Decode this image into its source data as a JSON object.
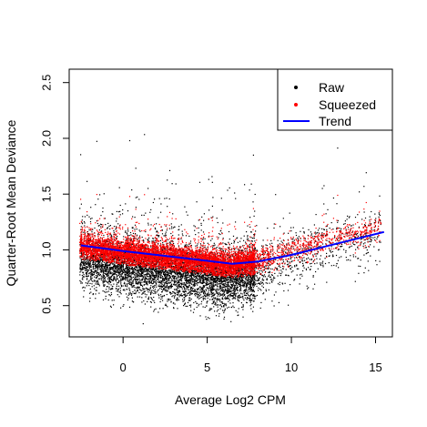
{
  "chart_data": {
    "type": "scatter",
    "xlabel": "Average Log2 CPM",
    "ylabel": "Quarter-Root Mean Deviance",
    "xlim": [
      -3.2,
      16.0
    ],
    "ylim": [
      0.22,
      2.62
    ],
    "x_ticks": [
      0,
      5,
      10,
      15
    ],
    "x_tick_labels": [
      "0",
      "5",
      "10",
      "15"
    ],
    "y_ticks": [
      0.5,
      1.0,
      1.5,
      2.0,
      2.5
    ],
    "y_tick_labels": [
      "0.5",
      "1.0",
      "1.5",
      "2.0",
      "2.5"
    ],
    "grid": false,
    "legend": {
      "position": "top-right",
      "entries": [
        {
          "label": "Raw",
          "symbol": "point",
          "color": "#000000"
        },
        {
          "label": "Squeezed",
          "symbol": "point",
          "color": "#ff0000"
        },
        {
          "label": "Trend",
          "symbol": "line",
          "color": "#0000ff"
        }
      ]
    },
    "series": [
      {
        "name": "Raw",
        "kind": "points",
        "color": "#000000",
        "description": "dense cloud of gene-wise raw values",
        "x_range": [
          -2.6,
          15.3
        ],
        "y_range": [
          0.3,
          2.5
        ],
        "center_trend": [
          [
            -2.5,
            0.93
          ],
          [
            0,
            0.86
          ],
          [
            3,
            0.82
          ],
          [
            6,
            0.74
          ],
          [
            8,
            0.82
          ],
          [
            10,
            0.94
          ],
          [
            15,
            1.15
          ]
        ]
      },
      {
        "name": "Squeezed",
        "kind": "points",
        "color": "#ff0000",
        "description": "values squeezed toward trend",
        "x_range": [
          -2.6,
          15.3
        ],
        "y_range": [
          0.75,
          2.3
        ]
      },
      {
        "name": "Trend",
        "kind": "line",
        "color": "#0000ff",
        "x": [
          -2.5,
          0,
          2,
          4,
          6.5,
          8,
          10,
          12,
          15.5
        ],
        "y": [
          1.04,
          0.99,
          0.955,
          0.92,
          0.875,
          0.895,
          0.955,
          1.03,
          1.16
        ]
      }
    ]
  }
}
